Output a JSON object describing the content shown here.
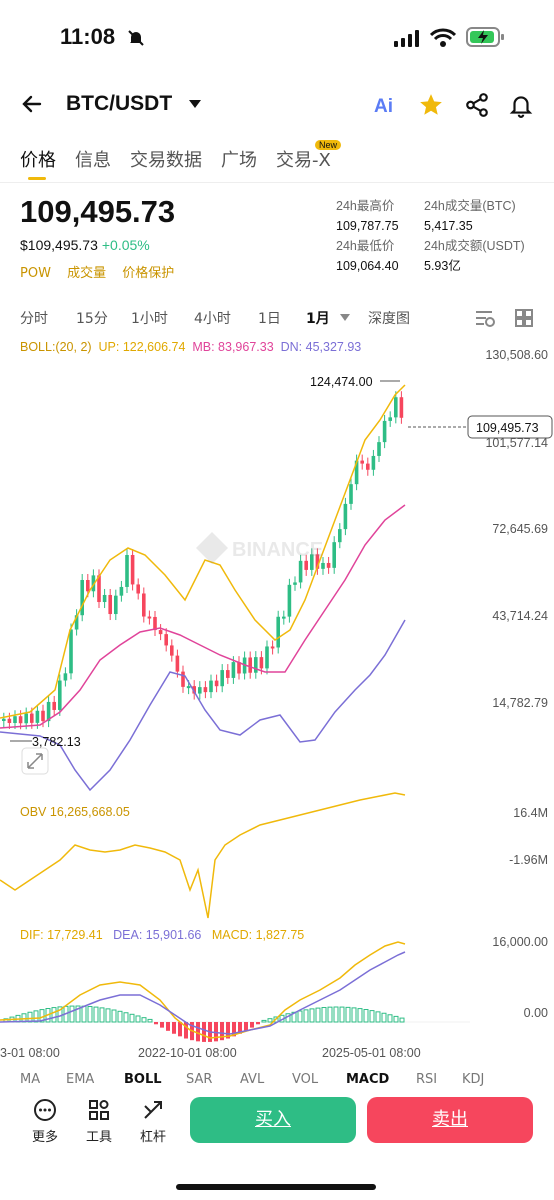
{
  "status_bar": {
    "time": "11:08"
  },
  "header": {
    "pair": "BTC/USDT",
    "icons": [
      "back-arrow-icon",
      "dropdown-caret-icon",
      "ai-icon",
      "star-icon",
      "share-icon",
      "bell-icon"
    ],
    "ai_label": "Ai"
  },
  "tabs": [
    {
      "label": "价格",
      "active": true
    },
    {
      "label": "信息"
    },
    {
      "label": "交易数据"
    },
    {
      "label": "广场"
    },
    {
      "label": "交易-X",
      "badge": "New"
    }
  ],
  "price": {
    "last": "109,495.73",
    "usd": "$109,495.73",
    "change": "+0.05%",
    "tags": [
      "POW",
      "成交量",
      "价格保护"
    ]
  },
  "stats": {
    "high_label": "24h最高价",
    "high": "109,787.75",
    "vol_btc_label": "24h成交量(BTC)",
    "vol_btc": "5,417.35",
    "low_label": "24h最低价",
    "low": "109,064.40",
    "vol_usdt_label": "24h成交额(USDT)",
    "vol_usdt": "5.93亿"
  },
  "intervals": [
    "分时",
    "15分",
    "1小时",
    "4小时",
    "1日",
    "1月",
    "深度图"
  ],
  "boll": {
    "label": "BOLL:(20, 2)",
    "up": "UP: 122,606.74",
    "mb": "MB: 83,967.33",
    "dn": "DN: 45,327.93"
  },
  "main_axis": [
    "130,508.60",
    "101,577.14",
    "72,645.69",
    "43,714.24",
    "14,782.79"
  ],
  "annotations": {
    "high": "124,474.00",
    "low": "3,782.13",
    "current": "109,495.73",
    "watermark": "BINANCE"
  },
  "obv": {
    "label": "OBV 16,265,668.05",
    "axis_top": "16.4M",
    "axis_mid": "-1.96M"
  },
  "macd": {
    "dif": "DIF: 17,729.41",
    "dea": "DEA: 15,901.66",
    "macd": "MACD: 1,827.75",
    "axis_top": "16,000.00",
    "axis_zero": "0.00"
  },
  "x_axis": [
    "3-01 08:00",
    "2022-10-01 08:00",
    "2025-05-01 08:00"
  ],
  "indicator_tabs": [
    "MA",
    "EMA",
    "BOLL",
    "SAR",
    "AVL",
    "VOL",
    "MACD",
    "RSI",
    "KDJ"
  ],
  "bottom": {
    "more": "更多",
    "tools": "工具",
    "leverage": "杠杆",
    "buy": "买入",
    "sell": "卖出"
  },
  "colors": {
    "up": "#2ebd85",
    "down": "#f6465d",
    "accent": "#f0b90b",
    "boll_up": "#f0b90b",
    "boll_mb": "#e0449a",
    "boll_dn": "#7b6fd6"
  }
}
